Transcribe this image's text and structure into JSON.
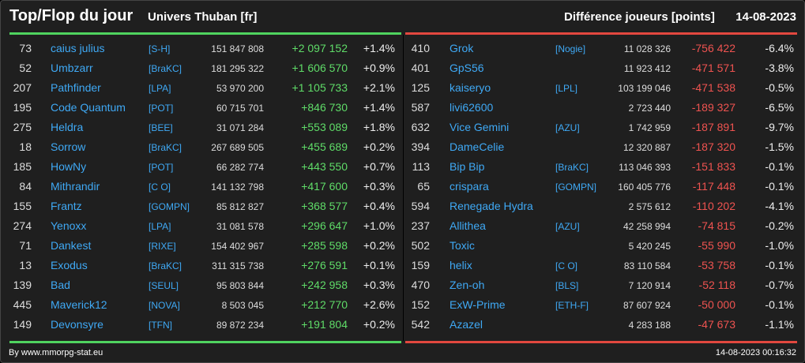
{
  "header": {
    "title": "Top/Flop du jour",
    "universe": "Univers Thuban [fr]",
    "mode": "Différence joueurs [points]",
    "date": "14-08-2023"
  },
  "colors": {
    "accent_top": "#4fd35f",
    "accent_flop": "#e2483f",
    "name": "#3fa9f5",
    "background": "#1f1f1f"
  },
  "top": [
    {
      "rank": "73",
      "name": "caius julius",
      "alliance": "[S-H]",
      "points": "151 847 808",
      "diff": "+2 097 152",
      "pct": "+1.4%"
    },
    {
      "rank": "52",
      "name": "Umbzarr",
      "alliance": "[BraKC]",
      "points": "181 295 322",
      "diff": "+1 606 570",
      "pct": "+0.9%"
    },
    {
      "rank": "207",
      "name": "Pathfinder",
      "alliance": "[LPA]",
      "points": "53 970 200",
      "diff": "+1 105 733",
      "pct": "+2.1%"
    },
    {
      "rank": "195",
      "name": "Code Quantum",
      "alliance": "[POT]",
      "points": "60 715 701",
      "diff": "+846 730",
      "pct": "+1.4%"
    },
    {
      "rank": "275",
      "name": "Heldra",
      "alliance": "[BEE]",
      "points": "31 071 284",
      "diff": "+553 089",
      "pct": "+1.8%"
    },
    {
      "rank": "18",
      "name": "Sorrow",
      "alliance": "[BraKC]",
      "points": "267 689 505",
      "diff": "+455 689",
      "pct": "+0.2%"
    },
    {
      "rank": "185",
      "name": "HowNy",
      "alliance": "[POT]",
      "points": "66 282 774",
      "diff": "+443 550",
      "pct": "+0.7%"
    },
    {
      "rank": "84",
      "name": "Mithrandir",
      "alliance": "[C O]",
      "points": "141 132 798",
      "diff": "+417 600",
      "pct": "+0.3%"
    },
    {
      "rank": "155",
      "name": "Frantz",
      "alliance": "[GOMPN]",
      "points": "85 812 827",
      "diff": "+368 577",
      "pct": "+0.4%"
    },
    {
      "rank": "274",
      "name": "Yenoxx",
      "alliance": "[LPA]",
      "points": "31 081 578",
      "diff": "+296 647",
      "pct": "+1.0%"
    },
    {
      "rank": "71",
      "name": "Dankest",
      "alliance": "[RIXE]",
      "points": "154 402 967",
      "diff": "+285 598",
      "pct": "+0.2%"
    },
    {
      "rank": "13",
      "name": "Exodus",
      "alliance": "[BraKC]",
      "points": "311 315 738",
      "diff": "+276 591",
      "pct": "+0.1%"
    },
    {
      "rank": "139",
      "name": "Bad",
      "alliance": "[SEUL]",
      "points": "95 803 844",
      "diff": "+242 958",
      "pct": "+0.3%"
    },
    {
      "rank": "445",
      "name": "Maverick12",
      "alliance": "[NOVA]",
      "points": "8 503 045",
      "diff": "+212 770",
      "pct": "+2.6%"
    },
    {
      "rank": "149",
      "name": "Devonsyre",
      "alliance": "[TFN]",
      "points": "89 872 234",
      "diff": "+191 804",
      "pct": "+0.2%"
    }
  ],
  "flop": [
    {
      "rank": "410",
      "name": "Grok",
      "alliance": "[Nogie]",
      "points": "11 028 326",
      "diff": "-756 422",
      "pct": "-6.4%"
    },
    {
      "rank": "401",
      "name": "GpS56",
      "alliance": "",
      "points": "11 923 412",
      "diff": "-471 571",
      "pct": "-3.8%"
    },
    {
      "rank": "125",
      "name": "kaiseryo",
      "alliance": "[LPL]",
      "points": "103 199 046",
      "diff": "-471 538",
      "pct": "-0.5%"
    },
    {
      "rank": "587",
      "name": "livi62600",
      "alliance": "",
      "points": "2 723 440",
      "diff": "-189 327",
      "pct": "-6.5%"
    },
    {
      "rank": "632",
      "name": "Vice Gemini",
      "alliance": "[AZU]",
      "points": "1 742 959",
      "diff": "-187 891",
      "pct": "-9.7%"
    },
    {
      "rank": "394",
      "name": "DameCelie",
      "alliance": "",
      "points": "12 320 887",
      "diff": "-187 320",
      "pct": "-1.5%"
    },
    {
      "rank": "113",
      "name": "Bip Bip",
      "alliance": "[BraKC]",
      "points": "113 046 393",
      "diff": "-151 833",
      "pct": "-0.1%"
    },
    {
      "rank": "65",
      "name": "crispara",
      "alliance": "[GOMPN]",
      "points": "160 405 776",
      "diff": "-117 448",
      "pct": "-0.1%"
    },
    {
      "rank": "594",
      "name": "Renegade Hydra",
      "alliance": "",
      "points": "2 575 612",
      "diff": "-110 202",
      "pct": "-4.1%"
    },
    {
      "rank": "237",
      "name": "Allithea",
      "alliance": "[AZU]",
      "points": "42 258 994",
      "diff": "-74 815",
      "pct": "-0.2%"
    },
    {
      "rank": "502",
      "name": "Toxic",
      "alliance": "",
      "points": "5 420 245",
      "diff": "-55 990",
      "pct": "-1.0%"
    },
    {
      "rank": "159",
      "name": "helix",
      "alliance": "[C O]",
      "points": "83 110 584",
      "diff": "-53 758",
      "pct": "-0.1%"
    },
    {
      "rank": "470",
      "name": "Zen-oh",
      "alliance": "[BLS]",
      "points": "7 120 914",
      "diff": "-52 118",
      "pct": "-0.7%"
    },
    {
      "rank": "152",
      "name": "ExW-Prime",
      "alliance": "[ETH-F]",
      "points": "87 607 924",
      "diff": "-50 000",
      "pct": "-0.1%"
    },
    {
      "rank": "542",
      "name": "Azazel",
      "alliance": "",
      "points": "4 283 188",
      "diff": "-47 673",
      "pct": "-1.1%"
    }
  ],
  "footer": {
    "credit": "By www.mmorpg-stat.eu",
    "timestamp": "14-08-2023 00:16:32"
  }
}
